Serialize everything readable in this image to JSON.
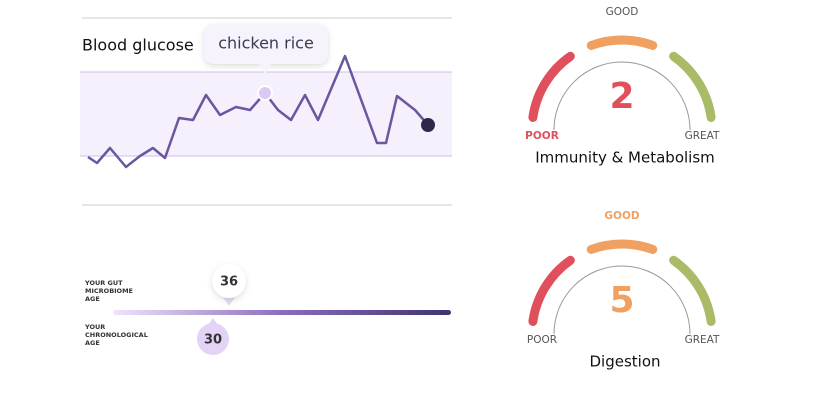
{
  "glucose": {
    "title": "Blood glucose",
    "x": [
      0,
      9,
      22,
      38,
      52,
      65,
      77,
      91,
      105,
      118,
      132,
      148,
      162,
      177,
      190,
      203,
      217,
      230,
      257,
      289,
      298,
      309,
      327,
      340
    ],
    "values": [
      43,
      37,
      52,
      33,
      44,
      52,
      42,
      82,
      80,
      105,
      85,
      93,
      90,
      107,
      90,
      80,
      105,
      80,
      144,
      57,
      57,
      104,
      90,
      75
    ],
    "color": "#6a57a0",
    "annotation": {
      "label": "chicken rice",
      "x": 177
    }
  },
  "gauges": [
    {
      "title": "Immunity & Metabolism",
      "value": 2,
      "labels": [
        "POOR",
        "GOOD",
        "GREAT"
      ],
      "level": 0
    },
    {
      "title": "Digestion",
      "value": 5,
      "labels": [
        "POOR",
        "GOOD",
        "GREAT"
      ],
      "level": 1
    }
  ],
  "level_colors": [
    "#e0505c",
    "#f0a060",
    "#a9bb66"
  ],
  "microbiome": {
    "gut_age": {
      "label": [
        "YOUR GUT",
        "MICROBIOME",
        "AGE"
      ],
      "value": 36
    },
    "chronological_age": {
      "label": [
        "YOUR",
        "CHRONOLOGICAL",
        "AGE"
      ],
      "value": 30
    }
  }
}
